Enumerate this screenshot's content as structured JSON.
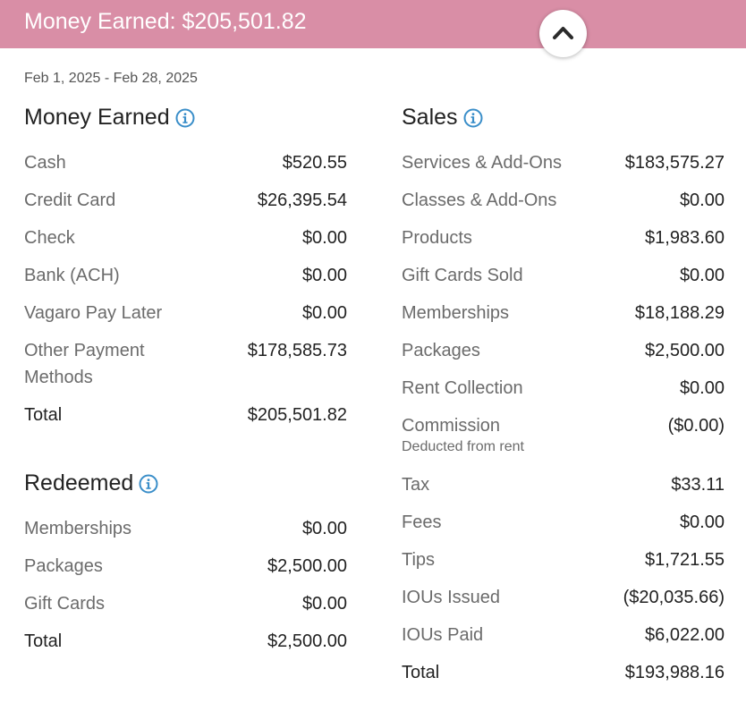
{
  "header": {
    "title": "Money Earned: $205,501.82",
    "collapse_icon": "chevron-up-icon"
  },
  "date_range": "Feb 1, 2025 - Feb 28, 2025",
  "money_earned": {
    "title": "Money Earned",
    "rows": [
      {
        "label": "Cash",
        "value": "$520.55"
      },
      {
        "label": "Credit Card",
        "value": "$26,395.54"
      },
      {
        "label": "Check",
        "value": "$0.00"
      },
      {
        "label": "Bank (ACH)",
        "value": "$0.00"
      },
      {
        "label": "Vagaro Pay Later",
        "value": "$0.00"
      },
      {
        "label": "Other Payment Methods",
        "value": "$178,585.73"
      }
    ],
    "total": {
      "label": "Total",
      "value": "$205,501.82"
    }
  },
  "redeemed": {
    "title": "Redeemed",
    "rows": [
      {
        "label": "Memberships",
        "value": "$0.00"
      },
      {
        "label": "Packages",
        "value": "$2,500.00"
      },
      {
        "label": "Gift Cards",
        "value": "$0.00"
      }
    ],
    "total": {
      "label": "Total",
      "value": "$2,500.00"
    }
  },
  "sales": {
    "title": "Sales",
    "rows": [
      {
        "label": "Services & Add-Ons",
        "value": "$183,575.27"
      },
      {
        "label": "Classes & Add-Ons",
        "value": "$0.00"
      },
      {
        "label": "Products",
        "value": "$1,983.60"
      },
      {
        "label": "Gift Cards Sold",
        "value": "$0.00"
      },
      {
        "label": "Memberships",
        "value": "$18,188.29"
      },
      {
        "label": "Packages",
        "value": "$2,500.00"
      },
      {
        "label": "Rent Collection",
        "value": "$0.00"
      },
      {
        "label": "Commission",
        "value": "($0.00)",
        "note": "Deducted from rent"
      },
      {
        "label": "Tax",
        "value": "$33.11"
      },
      {
        "label": "Fees",
        "value": "$0.00"
      },
      {
        "label": "Tips",
        "value": "$1,721.55"
      },
      {
        "label": "IOUs Issued",
        "value": "($20,035.66)"
      },
      {
        "label": "IOUs Paid",
        "value": "$6,022.00"
      }
    ],
    "total": {
      "label": "Total",
      "value": "$193,988.16"
    }
  },
  "colors": {
    "header_bg": "#d98ea6",
    "info_icon": "#3a8ec9"
  }
}
